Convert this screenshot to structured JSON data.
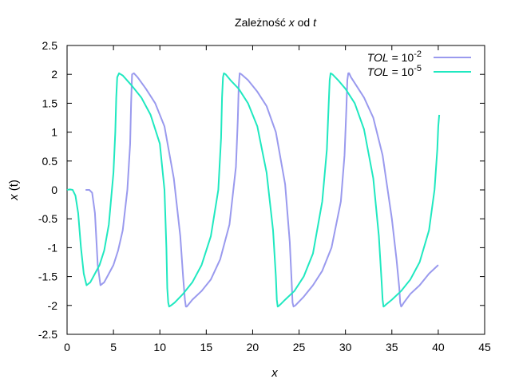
{
  "chart_data": {
    "type": "line",
    "title": {
      "prefix": "Zależność",
      "var1": "x",
      "mid": "od",
      "var2": "t"
    },
    "xlabel": "x",
    "ylabel": {
      "prefix": "x",
      "arg": "(t)"
    },
    "xlim": [
      0,
      45
    ],
    "ylim": [
      -2.5,
      2.5
    ],
    "xticks": [
      0,
      5,
      10,
      15,
      20,
      25,
      30,
      35,
      40,
      45
    ],
    "yticks": [
      -2.5,
      -2,
      -1.5,
      -1,
      -0.5,
      0,
      0.5,
      1,
      1.5,
      2,
      2.5
    ],
    "grid": false,
    "legend_position": "top-right",
    "series": [
      {
        "legend_var": "TOL",
        "legend_eq": "= 10",
        "legend_exp": "-2",
        "color": "#9a9aee",
        "x": [
          2.0,
          2.4,
          2.7,
          3.0,
          3.3,
          3.6,
          4.0,
          4.5,
          5.0,
          5.5,
          6.0,
          6.5,
          6.8,
          6.9,
          7.0,
          7.2,
          7.6,
          8.5,
          9.5,
          10.5,
          11.5,
          12.2,
          12.5,
          12.7,
          12.8,
          12.9,
          13.0,
          13.5,
          14.5,
          15.5,
          16.5,
          17.5,
          18.2,
          18.4,
          18.5,
          18.6,
          18.8,
          19.5,
          20.5,
          21.5,
          22.5,
          23.5,
          24.0,
          24.2,
          24.3,
          24.4,
          24.6,
          25.5,
          26.5,
          27.5,
          28.5,
          29.5,
          29.9,
          30.1,
          30.2,
          30.3,
          30.4,
          30.6,
          31.2,
          32.0,
          33.0,
          34.0,
          35.0,
          35.5,
          35.8,
          35.9,
          36.0,
          36.1,
          36.3,
          37.0,
          38.0,
          39.0,
          40.0
        ],
        "y": [
          0.0,
          0.0,
          -0.05,
          -0.4,
          -1.3,
          -1.65,
          -1.6,
          -1.45,
          -1.3,
          -1.05,
          -0.7,
          0.0,
          0.8,
          1.5,
          2.0,
          2.02,
          1.95,
          1.75,
          1.5,
          1.1,
          0.2,
          -0.8,
          -1.5,
          -1.9,
          -2.02,
          -2.02,
          -2.0,
          -1.9,
          -1.75,
          -1.55,
          -1.2,
          -0.6,
          0.4,
          1.2,
          1.8,
          2.02,
          2.0,
          1.9,
          1.7,
          1.45,
          1.0,
          0.1,
          -0.9,
          -1.6,
          -1.95,
          -2.02,
          -2.0,
          -1.85,
          -1.65,
          -1.4,
          -1.0,
          -0.2,
          0.6,
          1.4,
          1.9,
          2.02,
          2.02,
          1.95,
          1.8,
          1.6,
          1.25,
          0.6,
          -0.5,
          -1.2,
          -1.7,
          -1.95,
          -2.02,
          -2.0,
          -1.95,
          -1.8,
          -1.65,
          -1.45,
          -1.3
        ]
      },
      {
        "legend_var": "TOL",
        "legend_eq": "= 10",
        "legend_exp": "-5",
        "color": "#20e8c0",
        "x": [
          0.0,
          0.3,
          0.6,
          0.9,
          1.2,
          1.5,
          1.8,
          2.1,
          2.5,
          3.0,
          3.5,
          4.0,
          4.5,
          5.0,
          5.2,
          5.3,
          5.4,
          5.6,
          6.0,
          7.0,
          8.0,
          9.0,
          10.0,
          10.5,
          10.7,
          10.8,
          10.9,
          11.0,
          11.2,
          11.6,
          12.5,
          13.5,
          14.5,
          15.5,
          16.3,
          16.6,
          16.7,
          16.8,
          16.9,
          17.1,
          17.6,
          18.5,
          19.5,
          20.5,
          21.5,
          22.2,
          22.5,
          22.6,
          22.7,
          22.8,
          23.0,
          23.5,
          24.5,
          25.5,
          26.5,
          27.5,
          28.0,
          28.2,
          28.3,
          28.4,
          28.6,
          29.2,
          30.0,
          31.0,
          32.0,
          33.0,
          33.6,
          33.9,
          34.0,
          34.1,
          34.2,
          34.4,
          35.0,
          36.0,
          37.0,
          38.0,
          39.0,
          39.6,
          39.9,
          40.0,
          40.1
        ],
        "y": [
          0.0,
          0.01,
          0.0,
          -0.1,
          -0.4,
          -1.0,
          -1.45,
          -1.65,
          -1.6,
          -1.45,
          -1.3,
          -1.05,
          -0.6,
          0.3,
          1.0,
          1.6,
          1.95,
          2.02,
          1.98,
          1.8,
          1.6,
          1.3,
          0.8,
          0.0,
          -1.0,
          -1.7,
          -1.95,
          -2.02,
          -2.0,
          -1.95,
          -1.8,
          -1.6,
          -1.3,
          -0.8,
          0.0,
          0.9,
          1.6,
          1.95,
          2.02,
          2.0,
          1.9,
          1.75,
          1.5,
          1.1,
          0.3,
          -0.7,
          -1.5,
          -1.9,
          -2.02,
          -2.01,
          -1.98,
          -1.9,
          -1.75,
          -1.5,
          -1.1,
          -0.2,
          0.7,
          1.5,
          1.9,
          2.02,
          2.0,
          1.9,
          1.75,
          1.5,
          1.05,
          0.2,
          -0.8,
          -1.6,
          -1.9,
          -2.02,
          -2.01,
          -1.98,
          -1.9,
          -1.75,
          -1.55,
          -1.25,
          -0.7,
          0.0,
          0.7,
          1.1,
          1.3
        ]
      }
    ]
  }
}
